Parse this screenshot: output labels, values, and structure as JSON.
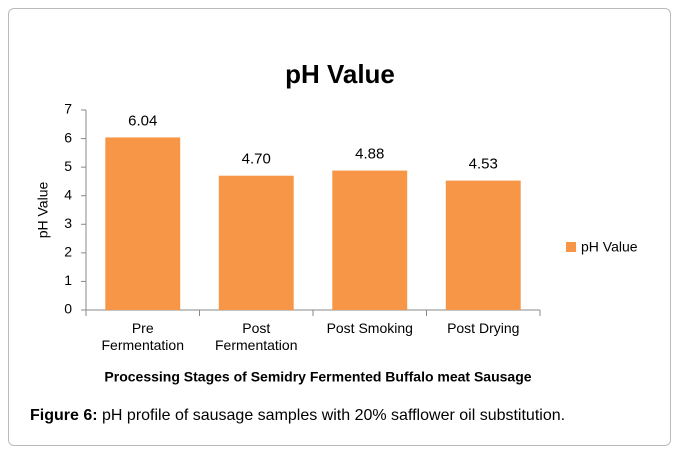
{
  "chart_data": {
    "type": "bar",
    "title": "pH Value",
    "categories": [
      "Pre Fermentation",
      "Post Fermentation",
      "Post Smoking",
      "Post Drying"
    ],
    "series": [
      {
        "name": "pH Value",
        "color": "#f79646",
        "values": [
          6.04,
          4.7,
          4.88,
          4.53
        ],
        "value_labels": [
          "6.04",
          "4.70",
          "4.88",
          "4.53"
        ]
      }
    ],
    "ylabel": "pH Value",
    "xlabel": "Processing Stages of Semidry Fermented Buffalo meat Sausage",
    "ylim": [
      0,
      7
    ],
    "yticks": [
      0,
      1,
      2,
      3,
      4,
      5,
      6,
      7
    ],
    "grid": false,
    "legend": "right"
  },
  "caption": {
    "label": "Figure 6:",
    "text": "pH profile of sausage samples with 20% safflower oil substitution."
  }
}
